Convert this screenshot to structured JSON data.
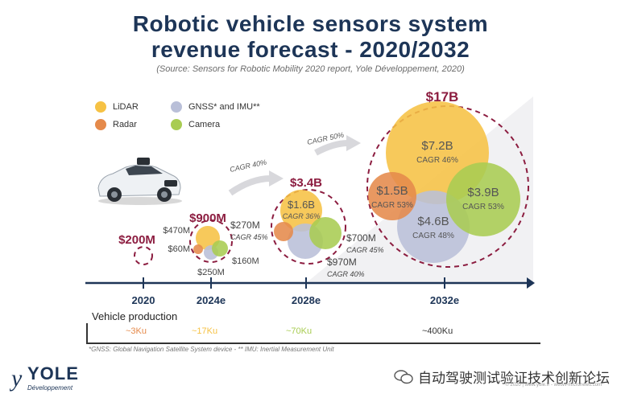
{
  "header": {
    "title_line1": "Robotic vehicle sensors system",
    "title_line2": "revenue forecast - 2020/2032",
    "source": "(Source: Sensors for Robotic Mobility 2020 report, Yole Développement, 2020)"
  },
  "legend": {
    "items": [
      {
        "label": "LiDAR",
        "color": "#f6c244"
      },
      {
        "label": "Radar",
        "color": "#e58a4b"
      },
      {
        "label": "GNSS* and IMU**",
        "color": "#b9bfd8"
      },
      {
        "label": "Camera",
        "color": "#a8cc52"
      }
    ]
  },
  "chart_data": {
    "type": "bubble",
    "categories": [
      "2020",
      "2024e",
      "2028e",
      "2032e"
    ],
    "totals": [
      "$200M",
      "$900M",
      "$3.4B",
      "$17B"
    ],
    "segments": {
      "2024e": [
        {
          "sensor": "LiDAR",
          "value": "$470M"
        },
        {
          "sensor": "Radar",
          "value": "$60M"
        },
        {
          "sensor": "GNSS* and IMU**",
          "value": "$250M"
        },
        {
          "sensor": "Camera",
          "value": "$160M"
        }
      ],
      "2028e": [
        {
          "sensor": "LiDAR",
          "value": "$1.6B",
          "cagr": "CAGR 36%"
        },
        {
          "sensor": "Radar",
          "value": "$270M",
          "cagr": "CAGR 45%"
        },
        {
          "sensor": "GNSS* and IMU**",
          "value": "$970M",
          "cagr": "CAGR 40%"
        },
        {
          "sensor": "Camera",
          "value": "$700M",
          "cagr": "CAGR 45%"
        }
      ],
      "2032e": [
        {
          "sensor": "LiDAR",
          "value": "$7.2B",
          "cagr": "CAGR 46%"
        },
        {
          "sensor": "Radar",
          "value": "$1.5B",
          "cagr": "CAGR 53%"
        },
        {
          "sensor": "GNSS* and IMU**",
          "value": "$4.6B",
          "cagr": "CAGR 48%"
        },
        {
          "sensor": "Camera",
          "value": "$3.9B",
          "cagr": "CAGR 53%"
        }
      ]
    },
    "arrows": [
      "CAGR 40%",
      "CAGR 50%"
    ],
    "colors": {
      "total": "#8c1d40",
      "axis": "#1d3557"
    }
  },
  "vehicle_production": {
    "label": "Vehicle production",
    "values": [
      {
        "text": "~3Ku",
        "color": "#e58a4b"
      },
      {
        "text": "~17Ku",
        "color": "#f6c244"
      },
      {
        "text": "~70Ku",
        "color": "#a8cc52"
      },
      {
        "text": "~400Ku",
        "color": "#333333"
      }
    ]
  },
  "footnote": "*GNSS: Global Navigation Satellite System  device - ** IMU: Inertial Measurement Unit",
  "brand": {
    "word": "YOLE",
    "sub": "Développement",
    "initial": "y"
  },
  "watermark": {
    "text": "自动驾驶测试验证技术创新论坛",
    "credit": "© 2020 | www.yole.fr - www.i-micronews.com"
  }
}
